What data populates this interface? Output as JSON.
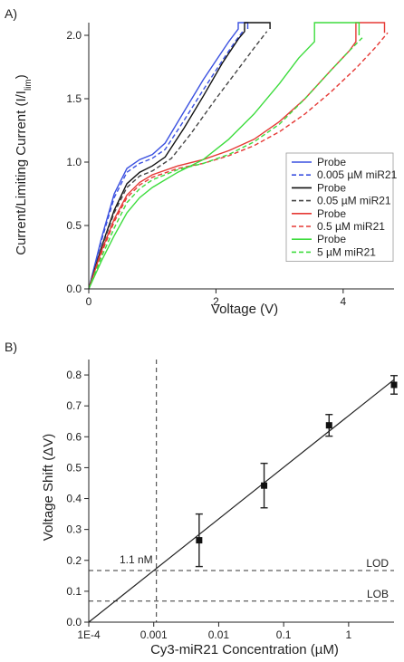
{
  "chart_data": [
    {
      "panel": "A)",
      "type": "line",
      "xlabel": "Voltage (V)",
      "ylabel": "Current/Limiting Current (I/I",
      "ylabel_sub": "lim",
      "ylabel_close": ")",
      "xlim": [
        0,
        4.8
      ],
      "ylim": [
        0,
        2.1
      ],
      "xticks": [
        0,
        2,
        4
      ],
      "xtick_labels": [
        "0",
        "2",
        "4"
      ],
      "yticks": [
        0.0,
        0.5,
        1.0,
        1.5,
        2.0
      ],
      "ytick_labels": [
        "0.0",
        "0.5",
        "1.0",
        "1.5",
        "2.0"
      ],
      "grid": false,
      "legend_position": "bottom-right",
      "series": [
        {
          "name": "Probe",
          "color": "#3a50e0",
          "dash": "solid",
          "x": [
            0,
            0.2,
            0.4,
            0.6,
            0.8,
            1.0,
            1.2,
            1.5,
            1.8,
            2.0,
            2.2,
            2.35,
            2.35,
            2.5,
            2.5
          ],
          "y": [
            0,
            0.4,
            0.75,
            0.95,
            1.02,
            1.06,
            1.15,
            1.4,
            1.65,
            1.8,
            1.95,
            2.05,
            2.1,
            2.1,
            2.05
          ]
        },
        {
          "name": "0.005 µM miR21",
          "color": "#3a50e0",
          "dash": "dash",
          "x": [
            0,
            0.2,
            0.4,
            0.6,
            0.8,
            1.0,
            1.2,
            1.5,
            1.8,
            2.1,
            2.3,
            2.45
          ],
          "y": [
            0,
            0.38,
            0.72,
            0.92,
            0.99,
            1.03,
            1.1,
            1.33,
            1.57,
            1.8,
            1.95,
            2.05
          ]
        },
        {
          "name": "Probe",
          "color": "#111111",
          "dash": "solid",
          "x": [
            0,
            0.2,
            0.4,
            0.6,
            0.8,
            1.0,
            1.2,
            1.5,
            1.8,
            2.1,
            2.35,
            2.45,
            2.45,
            2.85,
            2.85
          ],
          "y": [
            0,
            0.33,
            0.62,
            0.83,
            0.92,
            0.97,
            1.04,
            1.27,
            1.52,
            1.78,
            1.97,
            2.03,
            2.1,
            2.1,
            2.05
          ]
        },
        {
          "name": "0.05 µM miR21",
          "color": "#444444",
          "dash": "dash",
          "x": [
            0,
            0.2,
            0.4,
            0.6,
            0.8,
            1.0,
            1.3,
            1.6,
            2.0,
            2.3,
            2.6,
            2.8
          ],
          "y": [
            0,
            0.32,
            0.6,
            0.8,
            0.89,
            0.93,
            1.03,
            1.22,
            1.5,
            1.7,
            1.9,
            2.03
          ]
        },
        {
          "name": "Probe",
          "color": "#e53935",
          "dash": "solid",
          "x": [
            0,
            0.2,
            0.4,
            0.6,
            0.8,
            1.0,
            1.4,
            1.8,
            2.2,
            2.6,
            3.0,
            3.4,
            3.8,
            4.1,
            4.2,
            4.2,
            4.65,
            4.65
          ],
          "y": [
            0,
            0.3,
            0.55,
            0.74,
            0.84,
            0.9,
            0.97,
            1.02,
            1.09,
            1.18,
            1.32,
            1.5,
            1.72,
            1.88,
            1.95,
            2.1,
            2.1,
            2.02
          ]
        },
        {
          "name": "0.5 µM miR21",
          "color": "#e53935",
          "dash": "dash",
          "x": [
            0,
            0.2,
            0.4,
            0.6,
            0.8,
            1.0,
            1.4,
            1.8,
            2.2,
            2.6,
            3.0,
            3.4,
            3.8,
            4.2,
            4.5,
            4.7
          ],
          "y": [
            0,
            0.28,
            0.53,
            0.72,
            0.82,
            0.88,
            0.95,
            0.99,
            1.05,
            1.13,
            1.24,
            1.38,
            1.55,
            1.74,
            1.9,
            2.02
          ]
        },
        {
          "name": "Probe",
          "color": "#3ddc3d",
          "dash": "solid",
          "x": [
            0,
            0.2,
            0.4,
            0.6,
            0.8,
            1.0,
            1.4,
            1.8,
            2.2,
            2.6,
            3.0,
            3.3,
            3.55,
            3.55,
            4.25,
            4.25
          ],
          "y": [
            0,
            0.22,
            0.42,
            0.6,
            0.72,
            0.8,
            0.92,
            1.02,
            1.18,
            1.38,
            1.62,
            1.82,
            1.95,
            2.1,
            2.1,
            2.0
          ]
        },
        {
          "name": "5 µM miR21",
          "color": "#3ddc3d",
          "dash": "dash",
          "x": [
            0,
            0.2,
            0.4,
            0.6,
            0.8,
            1.0,
            1.4,
            1.8,
            2.2,
            2.6,
            3.0,
            3.4,
            3.8,
            4.1,
            4.3
          ],
          "y": [
            0,
            0.25,
            0.48,
            0.68,
            0.79,
            0.86,
            0.94,
            0.99,
            1.06,
            1.16,
            1.3,
            1.5,
            1.72,
            1.88,
            1.98
          ]
        }
      ]
    },
    {
      "panel": "B)",
      "type": "scatter",
      "xlabel": "Cy3-miR21 Concentration (µM)",
      "ylabel": "Voltage Shift (ΔV)",
      "xscale": "log",
      "xlim": [
        0.0001,
        5
      ],
      "ylim": [
        0.0,
        0.85
      ],
      "xticks": [
        0.0001,
        0.001,
        0.01,
        0.1,
        1
      ],
      "xtick_labels": [
        "1E-4",
        "0.001",
        "0.01",
        "0.1",
        "1"
      ],
      "yticks": [
        0.0,
        0.1,
        0.2,
        0.3,
        0.4,
        0.5,
        0.6,
        0.7,
        0.8
      ],
      "ytick_labels": [
        "0.0",
        "0.1",
        "0.2",
        "0.3",
        "0.4",
        "0.5",
        "0.6",
        "0.7",
        "0.8"
      ],
      "grid": false,
      "points": {
        "x": [
          0.005,
          0.05,
          0.5,
          5
        ],
        "y": [
          0.265,
          0.442,
          0.637,
          0.768
        ],
        "err": [
          0.085,
          0.072,
          0.035,
          0.03
        ]
      },
      "fit_line": {
        "x": [
          0.0001,
          5
        ],
        "y": [
          0.0,
          0.785
        ]
      },
      "lod": {
        "y": 0.167,
        "label": "LOD"
      },
      "lob": {
        "y": 0.068,
        "label": "LOB"
      },
      "lod_concentration": {
        "x": 0.0011,
        "label": "1.1 nM"
      }
    }
  ]
}
